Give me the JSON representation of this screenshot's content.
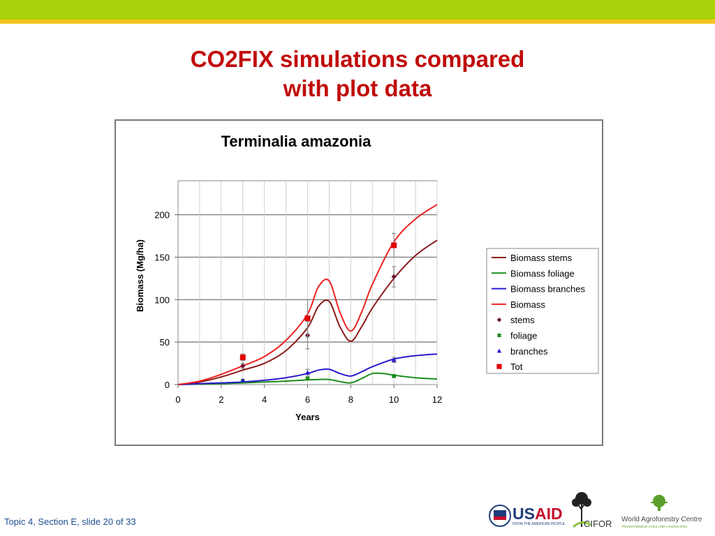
{
  "slide": {
    "title_line1": "CO2FIX simulations compared",
    "title_line2": "with plot data",
    "footer": "Topic 4, Section E, slide 20 of 33",
    "colors": {
      "topbar": "#a8d20a",
      "accent_line": "#f4c41f",
      "title": "#c00a0a"
    }
  },
  "logos": {
    "usaid": "USAID",
    "usaid_tagline": "FROM THE AMERICAN PEOPLE",
    "cifor": "CIFOR",
    "icraf": "World Agroforestry Centre",
    "icraf_tagline": "TRANSFORMING LIVES AND LANDSCAPES"
  },
  "chart_data": {
    "type": "line",
    "title": "Terminalia amazonia",
    "xlabel": "Years",
    "ylabel": "Biomass (Mg/ha)",
    "xlim": [
      0,
      12
    ],
    "ylim": [
      0,
      240
    ],
    "xticks": [
      0,
      2,
      4,
      6,
      8,
      10,
      12
    ],
    "yticks": [
      0,
      50,
      100,
      150,
      200
    ],
    "grid": "horizontal",
    "legend_position": "right",
    "series": [
      {
        "name": "Biomass stems",
        "kind": "line",
        "color": "#8b1a1a",
        "x": [
          0,
          1,
          2,
          3,
          4,
          5,
          6,
          6.5,
          7,
          7.5,
          8,
          8.5,
          9,
          10,
          11,
          12
        ],
        "y": [
          0,
          3,
          9,
          17,
          25,
          40,
          67,
          92,
          98,
          68,
          51,
          68,
          90,
          125,
          152,
          170
        ]
      },
      {
        "name": "Biomass foliage",
        "kind": "line",
        "color": "#1a8c1a",
        "x": [
          0,
          1,
          2,
          3,
          4,
          5,
          6,
          6.5,
          7,
          7.5,
          8,
          8.5,
          9,
          9.5,
          10,
          11,
          12
        ],
        "y": [
          0,
          0.5,
          1,
          2,
          3,
          4,
          5.5,
          6,
          6,
          3.5,
          2,
          7,
          13,
          13,
          11,
          8,
          6.5
        ]
      },
      {
        "name": "Biomass branches",
        "kind": "line",
        "color": "#2a1acc",
        "x": [
          0,
          1,
          2,
          3,
          4,
          5,
          6,
          6.5,
          7,
          7.5,
          8,
          8.5,
          9,
          10,
          11,
          12
        ],
        "y": [
          0,
          1,
          2,
          3,
          5,
          8,
          13,
          17,
          18,
          13,
          10,
          15,
          21,
          30,
          34,
          36
        ]
      },
      {
        "name": "Biomass",
        "kind": "line",
        "color": "#ee2222",
        "x": [
          0,
          1,
          2,
          3,
          4,
          5,
          6,
          6.5,
          7,
          7.5,
          8,
          8.5,
          9,
          10,
          11,
          12
        ],
        "y": [
          0,
          4,
          12,
          22,
          33,
          52,
          83,
          115,
          122,
          85,
          63,
          85,
          118,
          168,
          195,
          212
        ]
      },
      {
        "name": "stems",
        "kind": "marker",
        "marker": "diamond",
        "color": "#6b1030",
        "x": [
          3,
          6,
          10
        ],
        "y": [
          22,
          58,
          127
        ],
        "err": [
          3,
          16,
          12
        ]
      },
      {
        "name": "foliage",
        "kind": "marker",
        "marker": "square-small",
        "color": "#1a8c1a",
        "x": [
          3,
          6,
          10
        ],
        "y": [
          4,
          7,
          10
        ],
        "err": [
          0,
          0,
          0
        ]
      },
      {
        "name": "branches",
        "kind": "marker",
        "marker": "triangle",
        "color": "#2a1acc",
        "x": [
          3,
          6,
          10
        ],
        "y": [
          5,
          14,
          29
        ],
        "err": [
          0,
          4,
          3
        ]
      },
      {
        "name": "Tot",
        "kind": "marker",
        "marker": "square",
        "color": "#e00000",
        "x": [
          3,
          6,
          10
        ],
        "y": [
          32,
          78,
          164
        ],
        "err": [
          4,
          22,
          14
        ]
      }
    ]
  }
}
